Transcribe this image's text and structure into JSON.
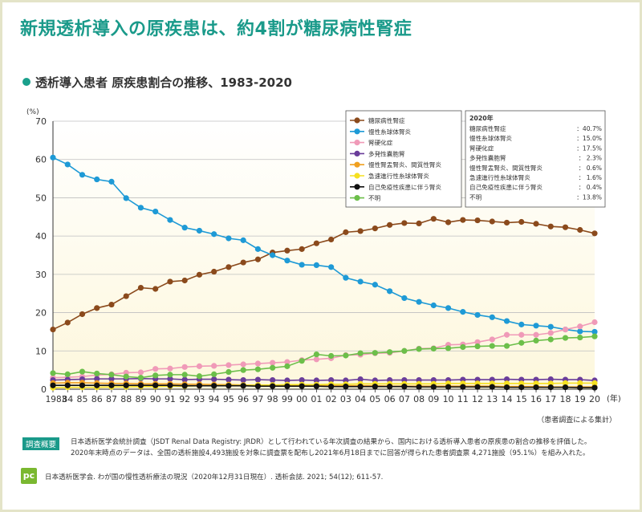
{
  "headline": "新規透析導入の原疾患は、約4割が糖尿病性腎症",
  "chart_data": {
    "type": "line",
    "title": "透析導入患者 原疾患割合の推移、1983-2020",
    "ylabel": "(%)",
    "xlabel": "(年)",
    "ylim": [
      0,
      70
    ],
    "yticks": [
      0,
      10,
      20,
      30,
      40,
      50,
      60,
      70
    ],
    "x": [
      "1983",
      "84",
      "85",
      "86",
      "87",
      "88",
      "89",
      "90",
      "91",
      "92",
      "93",
      "94",
      "95",
      "96",
      "97",
      "98",
      "99",
      "00",
      "01",
      "02",
      "03",
      "04",
      "05",
      "06",
      "07",
      "08",
      "09",
      "10",
      "11",
      "12",
      "13",
      "14",
      "15",
      "16",
      "17",
      "18",
      "19",
      "20"
    ],
    "series": [
      {
        "name": "糖尿病性腎症",
        "color": "#8b4a1c",
        "values": [
          15.6,
          17.4,
          19.6,
          21.2,
          22.1,
          24.3,
          26.5,
          26.2,
          28.1,
          28.4,
          29.9,
          30.7,
          31.9,
          33.1,
          33.9,
          35.7,
          36.2,
          36.6,
          38.1,
          39.1,
          41.0,
          41.3,
          42.0,
          42.9,
          43.4,
          43.3,
          44.5,
          43.6,
          44.2,
          44.1,
          43.8,
          43.5,
          43.7,
          43.2,
          42.5,
          42.3,
          41.6,
          40.7
        ]
      },
      {
        "name": "慢性糸球体腎炎",
        "color": "#1e9ad6",
        "values": [
          60.5,
          58.7,
          56.0,
          54.8,
          54.2,
          49.9,
          47.4,
          46.4,
          44.2,
          42.2,
          41.4,
          40.5,
          39.4,
          38.9,
          36.6,
          35.0,
          33.6,
          32.5,
          32.4,
          31.9,
          29.1,
          28.1,
          27.3,
          25.6,
          23.8,
          22.8,
          21.9,
          21.2,
          20.2,
          19.4,
          18.8,
          17.8,
          16.9,
          16.6,
          16.3,
          15.6,
          15.1,
          15.0
        ]
      },
      {
        "name": "腎硬化症",
        "color": "#f09ab8",
        "values": [
          3.0,
          3.1,
          3.3,
          3.7,
          3.9,
          4.3,
          4.4,
          5.3,
          5.4,
          5.8,
          6.0,
          6.1,
          6.3,
          6.5,
          6.7,
          6.9,
          7.1,
          7.6,
          7.8,
          8.1,
          8.9,
          9.0,
          9.4,
          9.5,
          10.0,
          10.6,
          10.7,
          11.6,
          11.7,
          12.3,
          13.0,
          14.2,
          14.2,
          14.2,
          14.7,
          15.6,
          16.4,
          17.5
        ]
      },
      {
        "name": "多発性嚢胞腎",
        "color": "#6a3d9a",
        "values": [
          2.4,
          2.5,
          2.6,
          2.7,
          2.7,
          2.7,
          2.8,
          2.7,
          2.7,
          2.5,
          2.6,
          2.6,
          2.5,
          2.4,
          2.5,
          2.4,
          2.3,
          2.4,
          2.3,
          2.4,
          2.3,
          2.6,
          2.3,
          2.4,
          2.4,
          2.4,
          2.4,
          2.4,
          2.5,
          2.5,
          2.5,
          2.6,
          2.5,
          2.5,
          2.6,
          2.5,
          2.5,
          2.3
        ]
      },
      {
        "name": "慢性腎盂腎炎、間質性腎炎",
        "color": "#f0a020",
        "values": [
          1.6,
          1.7,
          1.7,
          1.6,
          1.5,
          1.5,
          1.4,
          1.4,
          1.4,
          1.3,
          1.3,
          1.2,
          1.2,
          1.1,
          1.1,
          1.0,
          1.0,
          1.0,
          0.9,
          0.9,
          0.9,
          0.9,
          0.9,
          0.8,
          0.8,
          0.8,
          0.8,
          0.8,
          0.8,
          0.8,
          0.8,
          0.7,
          0.7,
          0.7,
          0.6,
          0.6,
          0.6,
          0.6
        ]
      },
      {
        "name": "急速進行性糸球体腎炎",
        "color": "#f5e020",
        "values": [
          0.4,
          0.5,
          0.5,
          0.5,
          0.6,
          0.6,
          0.7,
          0.7,
          0.8,
          0.8,
          0.9,
          0.9,
          1.0,
          1.0,
          1.1,
          1.1,
          1.2,
          1.2,
          1.2,
          1.3,
          1.3,
          1.4,
          1.4,
          1.4,
          1.4,
          1.4,
          1.4,
          1.5,
          1.5,
          1.5,
          1.5,
          1.5,
          1.5,
          1.5,
          1.5,
          1.6,
          1.6,
          1.6
        ]
      },
      {
        "name": "自己免疫性疾患に伴う腎炎",
        "color": "#111111",
        "values": [
          1.0,
          1.0,
          1.0,
          1.0,
          1.0,
          1.0,
          1.0,
          1.0,
          1.0,
          0.9,
          0.9,
          0.9,
          0.9,
          0.9,
          0.8,
          0.8,
          0.8,
          0.8,
          0.8,
          0.7,
          0.7,
          0.7,
          0.7,
          0.7,
          0.7,
          0.6,
          0.6,
          0.6,
          0.6,
          0.6,
          0.6,
          0.5,
          0.5,
          0.5,
          0.5,
          0.5,
          0.4,
          0.4
        ]
      },
      {
        "name": "不明",
        "color": "#6cbf4a",
        "values": [
          4.2,
          3.9,
          4.6,
          4.1,
          3.8,
          3.3,
          3.0,
          3.6,
          3.8,
          3.8,
          3.4,
          3.9,
          4.5,
          5.0,
          5.2,
          5.6,
          6.0,
          7.4,
          9.1,
          8.7,
          8.8,
          9.4,
          9.5,
          9.7,
          10.0,
          10.5,
          10.6,
          10.7,
          11.0,
          11.2,
          11.3,
          11.3,
          12.1,
          12.7,
          13.0,
          13.4,
          13.5,
          13.8
        ]
      }
    ],
    "summary": {
      "title": "2020年",
      "rows": [
        {
          "label": "糖尿病性腎症",
          "value": "：40.7%"
        },
        {
          "label": "慢性糸球体腎炎",
          "value": "：15.0%"
        },
        {
          "label": "腎硬化症",
          "value": "：17.5%"
        },
        {
          "label": "多発性嚢胞腎",
          "value": "：  2.3%"
        },
        {
          "label": "慢性腎盂腎炎、間質性腎炎",
          "value": "：  0.6%"
        },
        {
          "label": "急速進行性糸球体腎炎",
          "value": "：  1.6%"
        },
        {
          "label": "自己免疫性疾患に伴う腎炎",
          "value": "：  0.4%"
        },
        {
          "label": "不明",
          "value": "：13.8%"
        }
      ]
    },
    "source_note": "（患者調査による集計）"
  },
  "note": {
    "label": "調査概要",
    "line1": "日本透析医学会統計調査（JSDT Renal Data Registry: JRDR）として行われている年次調査の結果から、国内における透析導入患者の原疾患の割合の推移を評価した。",
    "line2": "2020年末時点のデータは、全国の透析施設4,493施設を対象に調査票を配布し2021年6月18日までに回答が得られた患者調査票 4,271施設（95.1%）を組み入れた。"
  },
  "source": {
    "logo": "pc",
    "text": "日本透析医学会. わが国の慢性透析療法の現況（2020年12月31日現在）. 透析会誌. 2021; 54(12); 611-57."
  }
}
